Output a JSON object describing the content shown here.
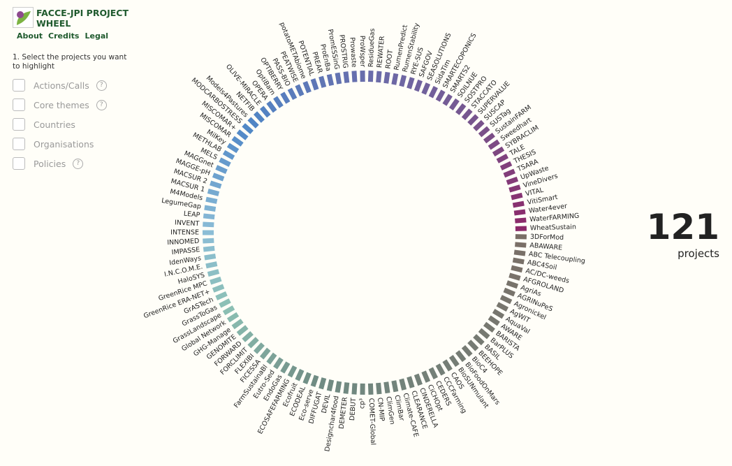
{
  "header": {
    "title": "FACCE-JPI PROJECT WHEEL",
    "links": [
      "About",
      "Credits",
      "Legal"
    ]
  },
  "filters": {
    "instruction": "1. Select the projects you want to highlight",
    "options": [
      {
        "label": "Actions/Calls",
        "help": "?"
      },
      {
        "label": "Core themes",
        "help": "?"
      },
      {
        "label": "Countries"
      },
      {
        "label": "Organisations"
      },
      {
        "label": "Policies",
        "help": "?"
      }
    ]
  },
  "wheel": {
    "projects": [
      "3DForMod",
      "ABAWARE",
      "ABC Telecoupling",
      "ABC4Soil",
      "AC/DC-weeds",
      "AFGROLAND",
      "AgriAs",
      "AGRINuPeS",
      "Agronickel",
      "AgWIT",
      "AquaVal",
      "AWARE",
      "BARISTA",
      "BarPLUS",
      "BASIL",
      "BEEHOPE",
      "BioC4",
      "BioFoodOnMars",
      "BioSUNmulant",
      "CAOS",
      "CCCFarming",
      "CEDERS",
      "CiCHOpt",
      "CINDERELLA",
      "CLEARANCE",
      "Climate-CAFE",
      "ClimBar",
      "ClimGen",
      "CN-MIP",
      "COMET-Global",
      "cp³",
      "DEBUT",
      "DEMETER",
      "Designchar4food",
      "DEVIL",
      "DIFFUGAT",
      "Eco-serve",
      "ECODEAL",
      "Ecofruit",
      "ECOSAFEFARMING",
      "EndoGas",
      "Eutro-Sed",
      "FarmSustainaBl",
      "FICESSA",
      "FLEXIBI",
      "FORCLIMIT",
      "FORWARD",
      "GENOMITE",
      "GHG-Manage",
      "Global Network",
      "GrassLandscape",
      "GrassToGas",
      "GrASTech",
      "GreenRice ERA-NET+",
      "GreenRice MPC",
      "HaloSYS",
      "I.N.C.O.M.E.",
      "IdenWays",
      "IMPASSE",
      "INNOMED",
      "INTENSE",
      "INVENT",
      "LEAP",
      "LegumeGap",
      "M4Models",
      "MACSUR 1",
      "MACSUR 2",
      "MAGGE-pH",
      "MAGGnet",
      "MELS",
      "METHLAB",
      "MilKey",
      "MISCOMAR",
      "MISCOMAR+",
      "MODCARBOSTRESS",
      "Models4Pastures",
      "NETFIB",
      "OLIVE-MIRACLE",
      "OPERA",
      "OptiBarn",
      "OPTIBERRY",
      "PASS-BIO",
      "PEATWISE",
      "potatoMETAbiome",
      "POTENTIAL",
      "PREAR",
      "ProEnBa",
      "PromESSinG",
      "PROSTRIG",
      "Prowaste",
      "ProWsper",
      "ResidueGas",
      "REWATER",
      "ROOT",
      "RumenPredict",
      "RumenStability",
      "RYE-SUS",
      "SAFGOV",
      "SEASOLUTIONS",
      "SidaTim",
      "SMARTECOPONICS",
      "SMARTS2",
      "SOILNUE",
      "SOSTPRO",
      "STACCATO",
      "SUPERVALUE",
      "SUSCAP",
      "SUSTag",
      "SustainFARM",
      "Sweedhart",
      "SYBRACLIM",
      "TALE",
      "THESIS",
      "TSARA",
      "UpWaste",
      "VineDivers",
      "VITAL",
      "VitiSmart",
      "Water4ever",
      "WaterFARMING",
      "WheatSustain"
    ]
  },
  "count": {
    "value": 121,
    "label": "projects"
  }
}
